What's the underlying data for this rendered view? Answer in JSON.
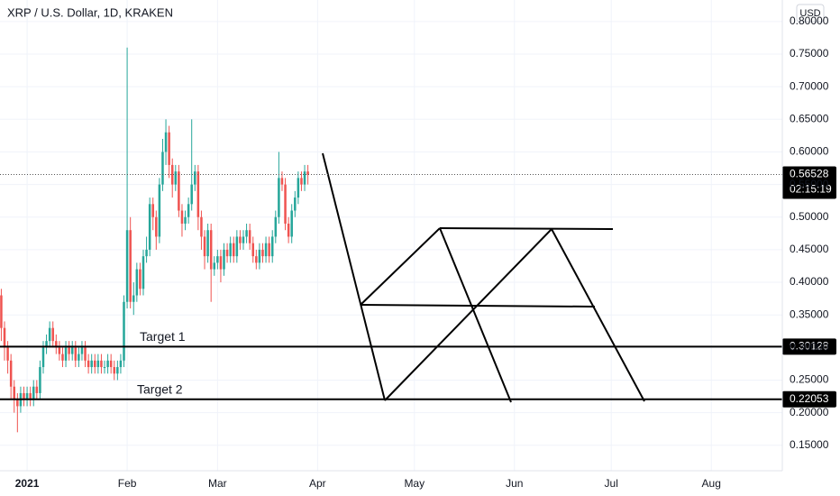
{
  "chart_data": {
    "type": "candlestick",
    "title": "XRP / U.S. Dollar, 1D, KRAKEN",
    "currency": "USD",
    "countdown": "02:15:19",
    "last_price": 0.56528,
    "up_color": "#26a69a",
    "down_color": "#ef5350",
    "grid": true,
    "x": [
      -8,
      -7,
      -6,
      -5,
      -4,
      -3,
      -2,
      -1,
      0,
      1,
      2,
      3,
      4,
      5,
      6,
      7,
      8,
      9,
      10,
      11,
      12,
      13,
      14,
      15,
      16,
      17,
      18,
      19,
      20,
      21,
      22,
      23,
      24,
      25,
      26,
      27,
      28,
      29,
      30,
      31,
      32,
      33,
      34,
      35,
      36,
      37,
      38,
      39,
      40,
      41,
      42,
      43,
      44,
      45,
      46,
      47,
      48,
      49,
      50,
      51,
      52,
      53,
      54,
      55,
      56,
      57,
      58,
      59,
      60,
      61,
      62,
      63,
      64,
      65,
      66,
      67,
      68,
      69,
      70,
      71,
      72,
      73,
      74,
      75,
      76,
      77,
      78,
      79,
      80,
      81,
      82,
      83,
      84,
      85,
      86,
      87
    ],
    "open": [
      0.38,
      0.33,
      0.3,
      0.28,
      0.24,
      0.22,
      0.21,
      0.23,
      0.22,
      0.23,
      0.22,
      0.24,
      0.23,
      0.27,
      0.3,
      0.31,
      0.33,
      0.31,
      0.3,
      0.29,
      0.28,
      0.3,
      0.29,
      0.3,
      0.28,
      0.29,
      0.3,
      0.28,
      0.27,
      0.28,
      0.27,
      0.28,
      0.27,
      0.27,
      0.28,
      0.27,
      0.26,
      0.27,
      0.28,
      0.37,
      0.48,
      0.37,
      0.38,
      0.42,
      0.39,
      0.44,
      0.45,
      0.52,
      0.5,
      0.47,
      0.55,
      0.6,
      0.63,
      0.58,
      0.55,
      0.57,
      0.51,
      0.49,
      0.5,
      0.52,
      0.55,
      0.57,
      0.5,
      0.47,
      0.44,
      0.48,
      0.42,
      0.43,
      0.44,
      0.42,
      0.45,
      0.44,
      0.46,
      0.44,
      0.47,
      0.46,
      0.47,
      0.48,
      0.46,
      0.44,
      0.43,
      0.45,
      0.44,
      0.46,
      0.44,
      0.47,
      0.5,
      0.56,
      0.55,
      0.49,
      0.47,
      0.51,
      0.53,
      0.56,
      0.55,
      0.57
    ],
    "high": [
      0.39,
      0.34,
      0.31,
      0.29,
      0.25,
      0.23,
      0.24,
      0.24,
      0.24,
      0.24,
      0.25,
      0.25,
      0.28,
      0.31,
      0.32,
      0.34,
      0.34,
      0.32,
      0.31,
      0.3,
      0.31,
      0.31,
      0.31,
      0.31,
      0.3,
      0.31,
      0.31,
      0.29,
      0.29,
      0.29,
      0.29,
      0.29,
      0.28,
      0.29,
      0.29,
      0.28,
      0.28,
      0.29,
      0.38,
      0.76,
      0.5,
      0.4,
      0.43,
      0.43,
      0.45,
      0.47,
      0.53,
      0.53,
      0.51,
      0.56,
      0.62,
      0.65,
      0.64,
      0.59,
      0.58,
      0.58,
      0.52,
      0.51,
      0.53,
      0.65,
      0.58,
      0.58,
      0.51,
      0.48,
      0.49,
      0.49,
      0.44,
      0.45,
      0.45,
      0.46,
      0.46,
      0.47,
      0.47,
      0.48,
      0.48,
      0.48,
      0.49,
      0.49,
      0.47,
      0.45,
      0.46,
      0.46,
      0.47,
      0.47,
      0.48,
      0.51,
      0.6,
      0.57,
      0.56,
      0.5,
      0.52,
      0.54,
      0.57,
      0.57,
      0.58,
      0.58
    ],
    "low": [
      0.31,
      0.28,
      0.26,
      0.22,
      0.2,
      0.17,
      0.2,
      0.21,
      0.21,
      0.21,
      0.21,
      0.22,
      0.22,
      0.26,
      0.29,
      0.3,
      0.3,
      0.29,
      0.28,
      0.27,
      0.27,
      0.28,
      0.28,
      0.27,
      0.27,
      0.28,
      0.27,
      0.26,
      0.26,
      0.26,
      0.26,
      0.26,
      0.26,
      0.26,
      0.26,
      0.25,
      0.25,
      0.26,
      0.27,
      0.36,
      0.36,
      0.35,
      0.37,
      0.38,
      0.38,
      0.43,
      0.44,
      0.48,
      0.45,
      0.46,
      0.54,
      0.58,
      0.56,
      0.53,
      0.54,
      0.5,
      0.47,
      0.48,
      0.49,
      0.51,
      0.54,
      0.48,
      0.45,
      0.42,
      0.43,
      0.37,
      0.41,
      0.42,
      0.4,
      0.41,
      0.43,
      0.43,
      0.43,
      0.43,
      0.45,
      0.45,
      0.46,
      0.45,
      0.43,
      0.42,
      0.42,
      0.43,
      0.43,
      0.43,
      0.43,
      0.46,
      0.49,
      0.54,
      0.48,
      0.46,
      0.46,
      0.5,
      0.52,
      0.54,
      0.54,
      0.55
    ],
    "close": [
      0.33,
      0.3,
      0.28,
      0.24,
      0.22,
      0.21,
      0.23,
      0.22,
      0.23,
      0.22,
      0.24,
      0.23,
      0.27,
      0.3,
      0.31,
      0.33,
      0.31,
      0.3,
      0.29,
      0.28,
      0.3,
      0.29,
      0.3,
      0.28,
      0.29,
      0.3,
      0.28,
      0.27,
      0.28,
      0.27,
      0.28,
      0.27,
      0.27,
      0.28,
      0.27,
      0.26,
      0.27,
      0.28,
      0.37,
      0.48,
      0.37,
      0.38,
      0.42,
      0.39,
      0.44,
      0.45,
      0.52,
      0.5,
      0.47,
      0.55,
      0.6,
      0.63,
      0.58,
      0.55,
      0.57,
      0.51,
      0.49,
      0.5,
      0.52,
      0.55,
      0.57,
      0.5,
      0.47,
      0.44,
      0.48,
      0.42,
      0.43,
      0.44,
      0.42,
      0.45,
      0.44,
      0.46,
      0.44,
      0.47,
      0.46,
      0.47,
      0.48,
      0.46,
      0.44,
      0.43,
      0.45,
      0.44,
      0.46,
      0.44,
      0.47,
      0.5,
      0.56,
      0.55,
      0.49,
      0.47,
      0.51,
      0.53,
      0.56,
      0.55,
      0.57,
      0.565
    ],
    "xlim": [
      -8.4,
      234
    ],
    "xticks": [
      {
        "value": 0,
        "label": "2021"
      },
      {
        "value": 31,
        "label": "Feb"
      },
      {
        "value": 59,
        "label": "Mar"
      },
      {
        "value": 90,
        "label": "Apr"
      },
      {
        "value": 120,
        "label": "May"
      },
      {
        "value": 151,
        "label": "Jun"
      },
      {
        "value": 181,
        "label": "Jul"
      },
      {
        "value": 212,
        "label": "Aug"
      }
    ],
    "ylim": [
      0.111,
      0.833
    ],
    "yticks": [
      {
        "value": 0.15,
        "label": "0.15000"
      },
      {
        "value": 0.2,
        "label": "0.20000"
      },
      {
        "value": 0.25,
        "label": "0.25000"
      },
      {
        "value": 0.3,
        "label": "0.30000"
      },
      {
        "value": 0.35,
        "label": "0.35000"
      },
      {
        "value": 0.4,
        "label": "0.40000"
      },
      {
        "value": 0.45,
        "label": "0.45000"
      },
      {
        "value": 0.5,
        "label": "0.50000"
      },
      {
        "value": 0.55,
        "label": "0.55000"
      },
      {
        "value": 0.6,
        "label": "0.60000"
      },
      {
        "value": 0.65,
        "label": "0.65000"
      },
      {
        "value": 0.7,
        "label": "0.70000"
      },
      {
        "value": 0.75,
        "label": "0.75000"
      },
      {
        "value": 0.8,
        "label": "0.80000"
      }
    ],
    "hlines": [
      {
        "value": 0.30128,
        "label": "Target 1"
      },
      {
        "value": 0.22053,
        "label": "Target 2"
      }
    ]
  }
}
